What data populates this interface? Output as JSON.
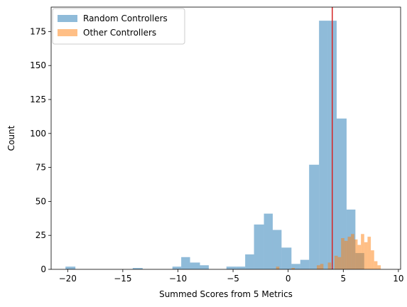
{
  "chart_data": {
    "type": "bar",
    "xlabel": "Summed Scores from 5 Metrics",
    "ylabel": "Count",
    "xlim": [
      -21.5,
      10.2
    ],
    "ylim": [
      0,
      193
    ],
    "xticks": [
      -20,
      -15,
      -10,
      -5,
      0,
      5,
      10
    ],
    "yticks": [
      0,
      25,
      50,
      75,
      100,
      125,
      150,
      175
    ],
    "legend_placement": "top-left",
    "grid": false,
    "series": [
      {
        "name": "Random Controllers",
        "color": "#1f77b4",
        "opacity": 0.5,
        "bins": [
          {
            "x0": -20.2,
            "x1": -19.3,
            "count": 2
          },
          {
            "x0": -14.1,
            "x1": -13.2,
            "count": 1
          },
          {
            "x0": -10.5,
            "x1": -9.7,
            "count": 2
          },
          {
            "x0": -9.7,
            "x1": -8.9,
            "count": 9
          },
          {
            "x0": -8.9,
            "x1": -8.0,
            "count": 5
          },
          {
            "x0": -8.0,
            "x1": -7.2,
            "count": 3
          },
          {
            "x0": -5.6,
            "x1": -4.7,
            "count": 2
          },
          {
            "x0": -4.7,
            "x1": -3.9,
            "count": 2
          },
          {
            "x0": -3.9,
            "x1": -3.1,
            "count": 11
          },
          {
            "x0": -3.1,
            "x1": -2.2,
            "count": 33
          },
          {
            "x0": -2.2,
            "x1": -1.4,
            "count": 41
          },
          {
            "x0": -1.4,
            "x1": -0.6,
            "count": 29
          },
          {
            "x0": -0.6,
            "x1": 0.3,
            "count": 16
          },
          {
            "x0": 0.3,
            "x1": 1.1,
            "count": 4
          },
          {
            "x0": 1.1,
            "x1": 1.9,
            "count": 7
          },
          {
            "x0": 1.9,
            "x1": 2.8,
            "count": 77
          },
          {
            "x0": 2.8,
            "x1": 3.6,
            "count": 183
          },
          {
            "x0": 3.6,
            "x1": 4.4,
            "count": 183
          },
          {
            "x0": 4.4,
            "x1": 5.3,
            "count": 111
          },
          {
            "x0": 5.3,
            "x1": 6.1,
            "count": 44
          },
          {
            "x0": 6.1,
            "x1": 6.9,
            "count": 12
          }
        ]
      },
      {
        "name": "Other Controllers",
        "color": "#ff7f0e",
        "opacity": 0.5,
        "bins": [
          {
            "x0": -1.1,
            "x1": -0.8,
            "count": 2
          },
          {
            "x0": 0.3,
            "x1": 0.6,
            "count": 1
          },
          {
            "x0": 2.6,
            "x1": 2.9,
            "count": 3
          },
          {
            "x0": 2.9,
            "x1": 3.2,
            "count": 4
          },
          {
            "x0": 3.6,
            "x1": 3.9,
            "count": 5
          },
          {
            "x0": 4.2,
            "x1": 4.5,
            "count": 10
          },
          {
            "x0": 4.5,
            "x1": 4.8,
            "count": 9
          },
          {
            "x0": 4.8,
            "x1": 5.1,
            "count": 23
          },
          {
            "x0": 5.1,
            "x1": 5.4,
            "count": 21
          },
          {
            "x0": 5.4,
            "x1": 5.7,
            "count": 24
          },
          {
            "x0": 5.7,
            "x1": 6.0,
            "count": 26
          },
          {
            "x0": 6.0,
            "x1": 6.3,
            "count": 22
          },
          {
            "x0": 6.3,
            "x1": 6.6,
            "count": 18
          },
          {
            "x0": 6.6,
            "x1": 6.9,
            "count": 26
          },
          {
            "x0": 6.9,
            "x1": 7.2,
            "count": 20
          },
          {
            "x0": 7.2,
            "x1": 7.5,
            "count": 24
          },
          {
            "x0": 7.5,
            "x1": 7.8,
            "count": 14
          },
          {
            "x0": 7.8,
            "x1": 8.1,
            "count": 6
          },
          {
            "x0": 8.1,
            "x1": 8.4,
            "count": 3
          }
        ]
      }
    ],
    "reference_line": {
      "x": 4.0,
      "color": "#d62728"
    }
  }
}
